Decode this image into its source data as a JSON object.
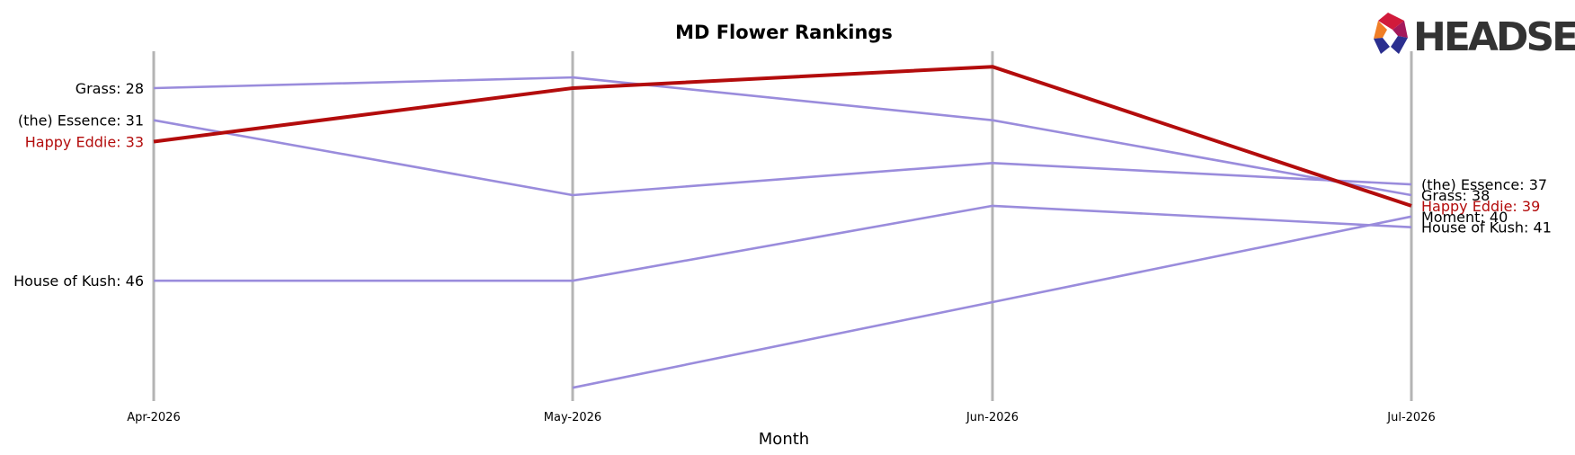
{
  "chart_data": {
    "type": "line",
    "title": "MD Flower Rankings",
    "xlabel": "Month",
    "ylabel": "",
    "x": [
      "Apr-2026",
      "May-2026",
      "Jun-2026",
      "Jul-2026"
    ],
    "y_inverted": true,
    "ylim": [
      24,
      53
    ],
    "grid": false,
    "highlight": "Happy Eddie",
    "colors": {
      "highlight": "#b30c0c",
      "other": "#9a8cdc",
      "vline": "#b4b4b4"
    },
    "series": [
      {
        "name": "Grass",
        "values": [
          28,
          27,
          31,
          38
        ]
      },
      {
        "name": "(the) Essence",
        "values": [
          31,
          38,
          35,
          37
        ]
      },
      {
        "name": "Happy Eddie",
        "values": [
          33,
          28,
          26,
          39
        ]
      },
      {
        "name": "House of Kush",
        "values": [
          46,
          46,
          39,
          41
        ]
      },
      {
        "name": "Moment",
        "values": [
          null,
          56,
          48,
          40
        ]
      }
    ],
    "start_labels": [
      {
        "series": "Grass",
        "text": "Grass: 28"
      },
      {
        "series": "(the) Essence",
        "text": "(the) Essence: 31"
      },
      {
        "series": "Happy Eddie",
        "text": "Happy Eddie: 33"
      },
      {
        "series": "House of Kush",
        "text": "House of Kush: 46"
      }
    ],
    "end_labels": [
      {
        "series": "(the) Essence",
        "text": "(the) Essence: 37"
      },
      {
        "series": "Grass",
        "text": "Grass: 38"
      },
      {
        "series": "Happy Eddie",
        "text": "Happy Eddie: 39"
      },
      {
        "series": "Moment",
        "text": "Moment: 40"
      },
      {
        "series": "House of Kush",
        "text": "House of Kush: 41"
      }
    ]
  },
  "logo": {
    "text": "HEADSET"
  }
}
